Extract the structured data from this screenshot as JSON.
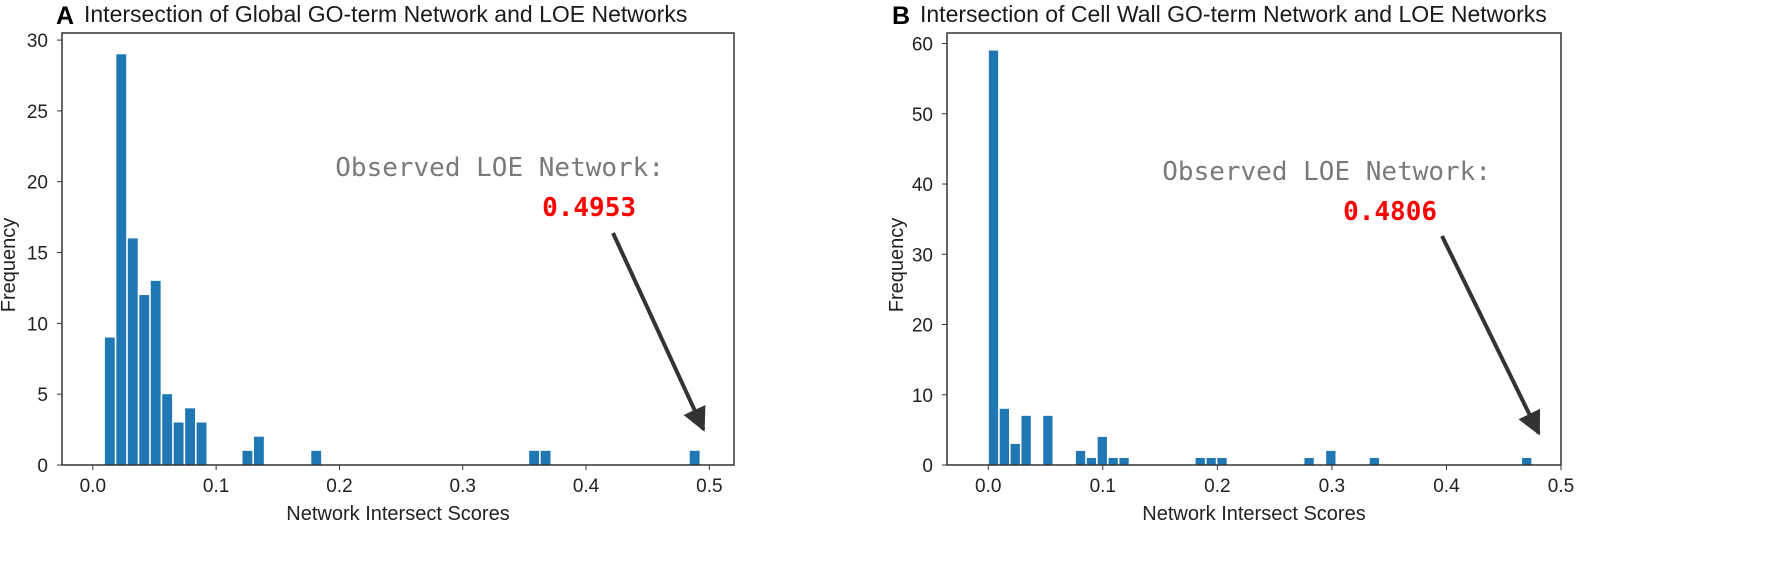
{
  "chart_data": [
    {
      "type": "bar",
      "panel_letter": "A",
      "title": "Intersection of Global GO-term Network and LOE Networks",
      "xlabel": "Network Intersect Scores",
      "ylabel": "Frequency",
      "xlim": [
        -0.025,
        0.52
      ],
      "ylim": [
        0,
        30.5
      ],
      "bin_width": 0.0093,
      "xticks": [
        0.0,
        0.1,
        0.2,
        0.3,
        0.4,
        0.5
      ],
      "xtick_labels": [
        "0.0",
        "0.1",
        "0.2",
        "0.3",
        "0.4",
        "0.5"
      ],
      "yticks": [
        0,
        5,
        10,
        15,
        20,
        25,
        30
      ],
      "ytick_labels": [
        "0",
        "5",
        "10",
        "15",
        "20",
        "25",
        "30"
      ],
      "bar_color": "#1f77b4",
      "bars": [
        {
          "x": 0.0093,
          "height": 9
        },
        {
          "x": 0.0186,
          "height": 29
        },
        {
          "x": 0.0279,
          "height": 16
        },
        {
          "x": 0.0372,
          "height": 12
        },
        {
          "x": 0.0465,
          "height": 13
        },
        {
          "x": 0.0558,
          "height": 5
        },
        {
          "x": 0.0651,
          "height": 3
        },
        {
          "x": 0.0744,
          "height": 4
        },
        {
          "x": 0.0837,
          "height": 3
        },
        {
          "x": 0.1209,
          "height": 1
        },
        {
          "x": 0.1302,
          "height": 2
        },
        {
          "x": 0.1767,
          "height": 1
        },
        {
          "x": 0.3534,
          "height": 1
        },
        {
          "x": 0.3627,
          "height": 1
        },
        {
          "x": 0.4836,
          "height": 1
        }
      ],
      "annotation": {
        "label": "Observed LOE Network:",
        "value": "0.4953",
        "value_color": "#ff0000",
        "arrow_color": "#333333",
        "target": {
          "x": 0.4953,
          "y": 2.5
        }
      }
    },
    {
      "type": "bar",
      "panel_letter": "B",
      "title": "Intersection of Cell Wall GO-term Network and LOE Networks",
      "xlabel": "Network Intersect Scores",
      "ylabel": "Frequency",
      "xlim": [
        -0.036,
        0.5
      ],
      "ylim": [
        0,
        61.5
      ],
      "bin_width": 0.0095,
      "xticks": [
        0.0,
        0.1,
        0.2,
        0.3,
        0.4,
        0.5
      ],
      "xtick_labels": [
        "0.0",
        "0.1",
        "0.2",
        "0.3",
        "0.4",
        "0.5"
      ],
      "yticks": [
        0,
        10,
        20,
        30,
        40,
        50,
        60
      ],
      "ytick_labels": [
        "0",
        "10",
        "20",
        "30",
        "40",
        "50",
        "60"
      ],
      "bar_color": "#1f77b4",
      "bars": [
        {
          "x": 0.0,
          "height": 59
        },
        {
          "x": 0.0095,
          "height": 8
        },
        {
          "x": 0.019,
          "height": 3
        },
        {
          "x": 0.0285,
          "height": 7
        },
        {
          "x": 0.0475,
          "height": 7
        },
        {
          "x": 0.076,
          "height": 2
        },
        {
          "x": 0.0855,
          "height": 1
        },
        {
          "x": 0.095,
          "height": 4
        },
        {
          "x": 0.1045,
          "height": 1
        },
        {
          "x": 0.114,
          "height": 1
        },
        {
          "x": 0.1805,
          "height": 1
        },
        {
          "x": 0.19,
          "height": 1
        },
        {
          "x": 0.1995,
          "height": 1
        },
        {
          "x": 0.2755,
          "height": 1
        },
        {
          "x": 0.2945,
          "height": 2
        },
        {
          "x": 0.3325,
          "height": 1
        },
        {
          "x": 0.4655,
          "height": 1
        }
      ],
      "annotation": {
        "label": "Observed LOE Network:",
        "value": "0.4806",
        "value_color": "#ff0000",
        "arrow_color": "#333333",
        "target": {
          "x": 0.4806,
          "y": 4.5
        }
      }
    }
  ]
}
